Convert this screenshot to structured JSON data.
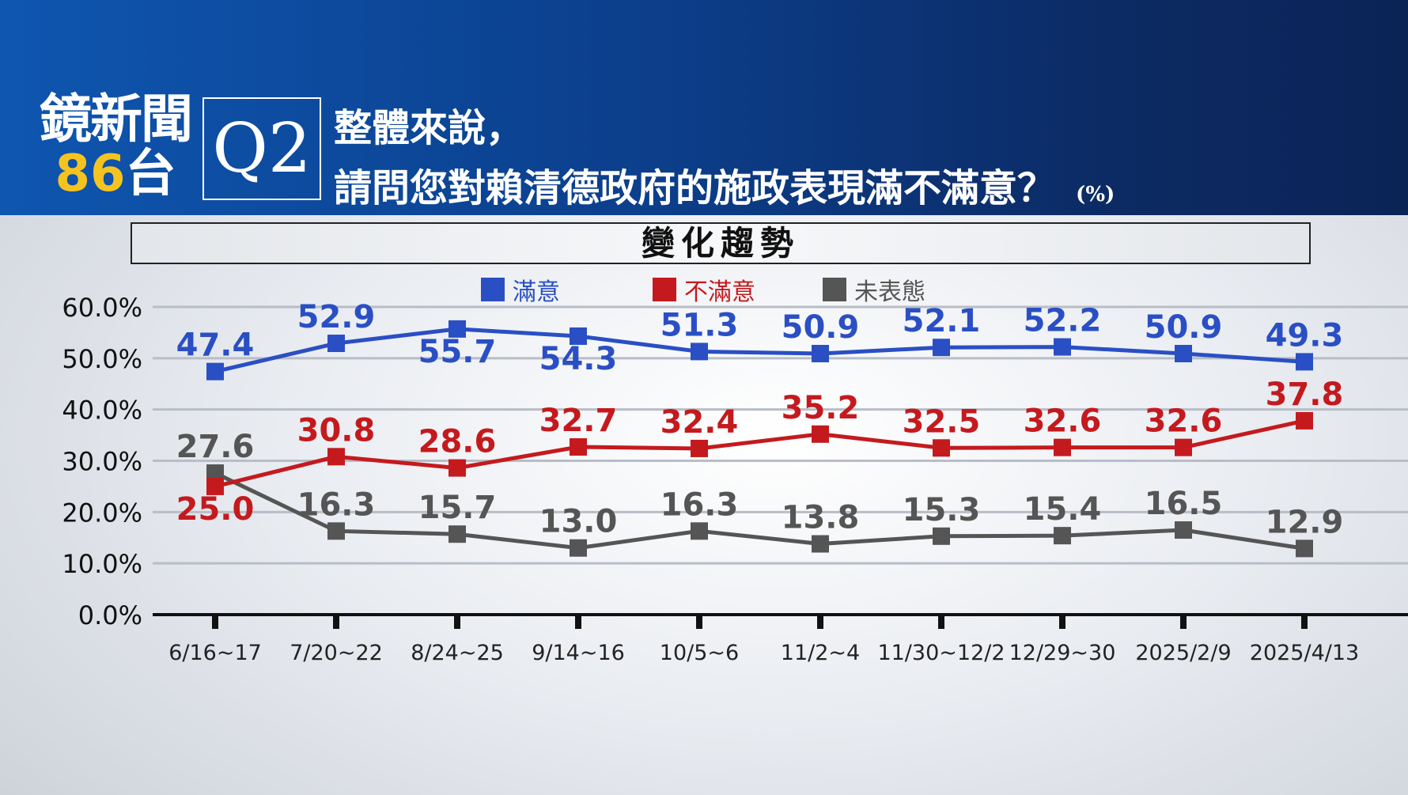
{
  "brand": {
    "name": "鏡新聞",
    "channel_number": "86",
    "channel_suffix": "台"
  },
  "question": {
    "label": "Q2",
    "line1": "整體來說，",
    "line2": "請問您對賴清德政府的施政表現滿不滿意？",
    "unit": "(%)"
  },
  "section_title": "變化趨勢",
  "colors": {
    "satisfied": "#2a4fc4",
    "dissatisfied": "#c41a1e",
    "neutral": "#555555"
  },
  "chart_data": {
    "type": "line",
    "title": "變化趨勢",
    "categories": [
      "6/16~17",
      "7/20~22",
      "8/24~25",
      "9/14~16",
      "10/5~6",
      "11/2~4",
      "11/30~12/2",
      "12/29~30",
      "2025/2/9",
      "2025/4/13"
    ],
    "ylim": [
      0,
      60
    ],
    "yticks": [
      "0.0%",
      "10.0%",
      "20.0%",
      "30.0%",
      "40.0%",
      "50.0%",
      "60.0%"
    ],
    "grid": true,
    "legend_position": "top-center",
    "series": [
      {
        "name": "滿意",
        "color": "#2a4fc4",
        "values": [
          47.4,
          52.9,
          55.7,
          54.3,
          51.3,
          50.9,
          52.1,
          52.2,
          50.9,
          49.3
        ],
        "labels": [
          "47.4",
          "52.9",
          "55.7",
          "54.3",
          "51.3",
          "50.9",
          "52.1",
          "52.2",
          "50.9",
          "49.3"
        ]
      },
      {
        "name": "不滿意",
        "color": "#c41a1e",
        "values": [
          25.0,
          30.8,
          28.6,
          32.7,
          32.4,
          35.2,
          32.5,
          32.6,
          32.6,
          37.8
        ],
        "labels": [
          "25.0",
          "30.8",
          "28.6",
          "32.7",
          "32.4",
          "35.2",
          "32.5",
          "32.6",
          "32.6",
          "37.8"
        ]
      },
      {
        "name": "未表態",
        "color": "#555555",
        "values": [
          27.6,
          16.3,
          15.7,
          13.0,
          16.3,
          13.8,
          15.3,
          15.4,
          16.5,
          12.9
        ],
        "labels": [
          "27.6",
          "16.3",
          "15.7",
          "13.0",
          "16.3",
          "13.8",
          "15.3",
          "15.4",
          "16.5",
          "12.9"
        ]
      }
    ]
  }
}
